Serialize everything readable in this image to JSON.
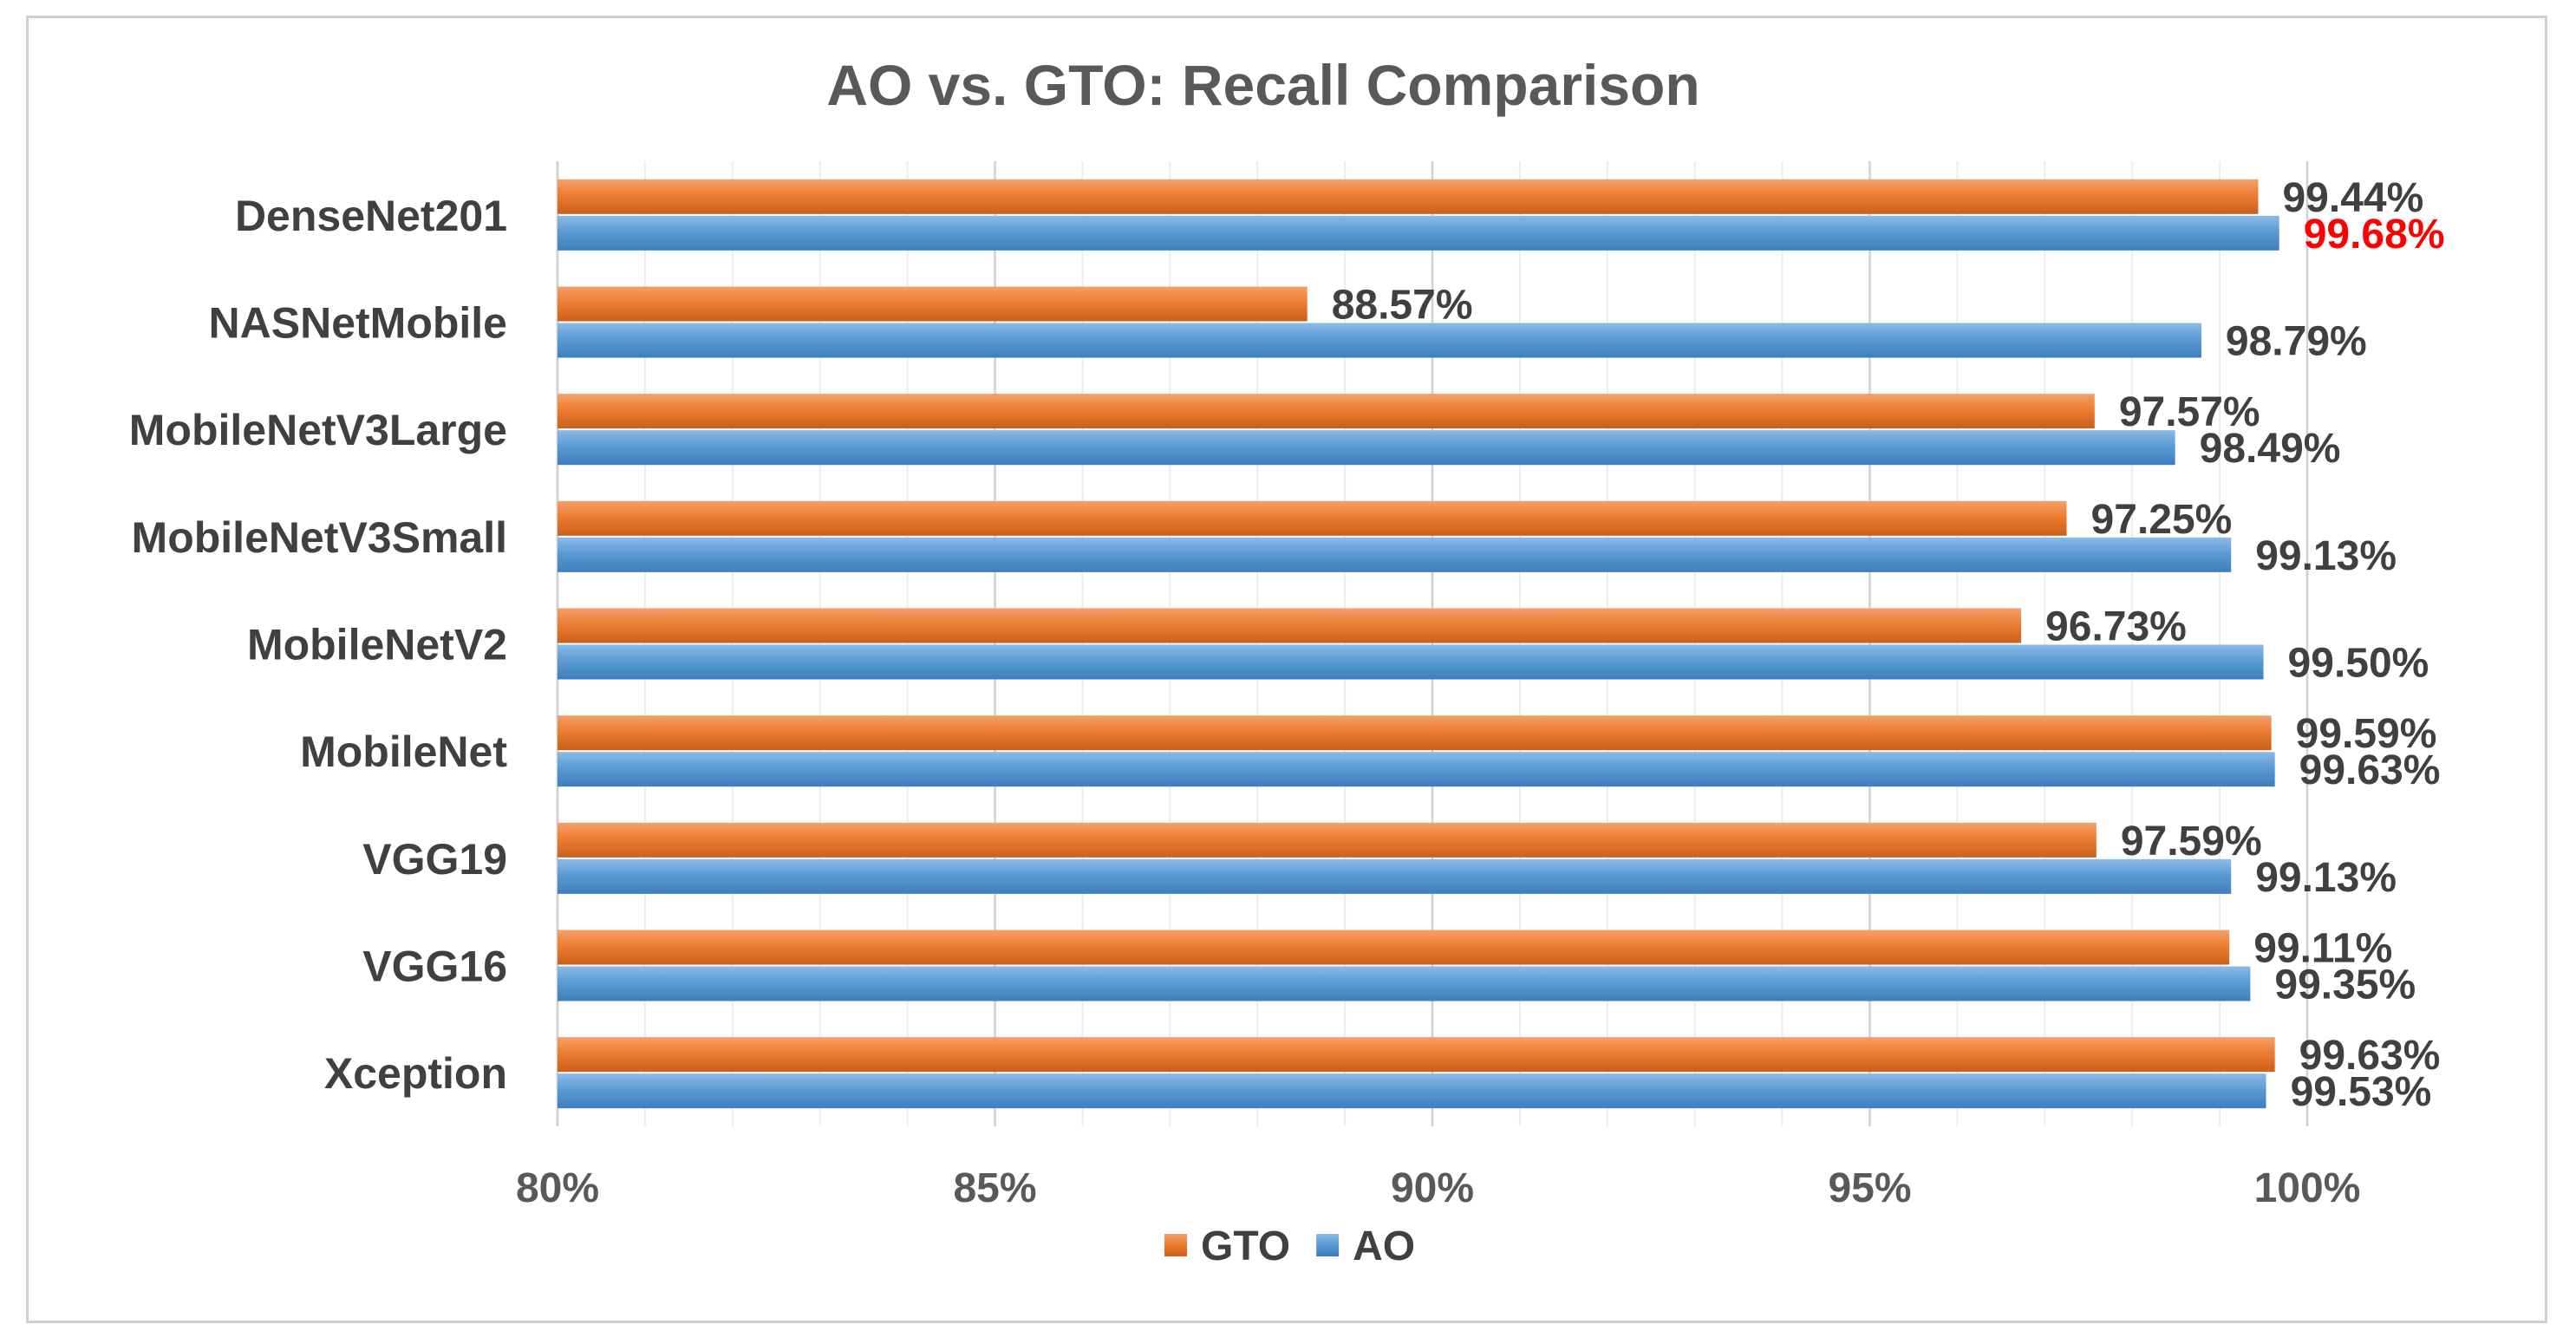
{
  "chart_data": {
    "type": "bar",
    "orientation": "horizontal",
    "title": "AO vs. GTO: Recall Comparison",
    "xlabel": "",
    "ylabel": "",
    "xlim": [
      80,
      100
    ],
    "x_ticks": [
      "80%",
      "85%",
      "90%",
      "95%",
      "100%"
    ],
    "x_tick_values": [
      80,
      85,
      90,
      95,
      100
    ],
    "grid": true,
    "legend_position": "bottom",
    "categories": [
      "DenseNet201",
      "NASNetMobile",
      "MobileNetV3Large",
      "MobileNetV3Small",
      "MobileNetV2",
      "MobileNet",
      "VGG19",
      "VGG16",
      "Xception"
    ],
    "series": [
      {
        "name": "GTO",
        "color": "#ed7d31",
        "values": [
          99.44,
          88.57,
          97.57,
          97.25,
          96.73,
          99.59,
          97.59,
          99.11,
          99.63
        ],
        "labels": [
          "99.44%",
          "88.57%",
          "97.57%",
          "97.25%",
          "96.73%",
          "99.59%",
          "97.59%",
          "99.11%",
          "99.63%"
        ]
      },
      {
        "name": "AO",
        "color": "#5b9bd5",
        "values": [
          99.68,
          98.79,
          98.49,
          99.13,
          99.5,
          99.63,
          99.13,
          99.35,
          99.53
        ],
        "labels": [
          "99.68%",
          "98.79%",
          "98.49%",
          "99.13%",
          "99.50%",
          "99.63%",
          "99.13%",
          "99.35%",
          "99.53%"
        ]
      }
    ],
    "highlight": {
      "series": "AO",
      "category": "DenseNet201",
      "color": "#ff0000"
    },
    "label_color": "#404040"
  }
}
